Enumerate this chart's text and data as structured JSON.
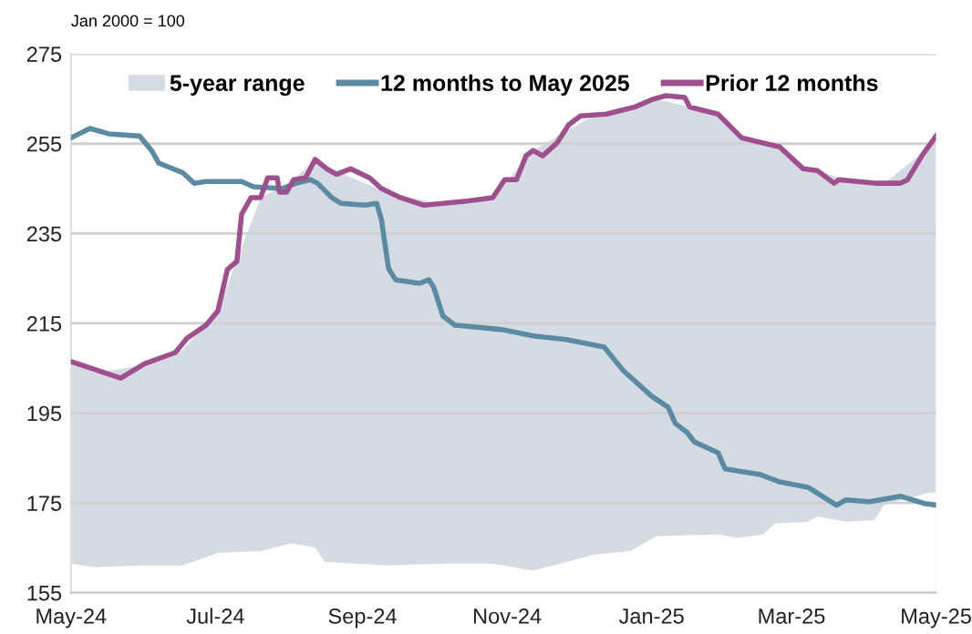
{
  "chart_data": {
    "type": "line",
    "annotations": [
      "Jan 2000 = 100"
    ],
    "xlim": [
      "2024-05-01",
      "2025-05-01"
    ],
    "xticks": [
      {
        "value": "2024-05-01",
        "label": "May-24"
      },
      {
        "value": "2024-07-01",
        "label": "Jul-24"
      },
      {
        "value": "2024-09-01",
        "label": "Sep-24"
      },
      {
        "value": "2024-11-01",
        "label": "Nov-24"
      },
      {
        "value": "2025-01-01",
        "label": "Jan-25"
      },
      {
        "value": "2025-03-01",
        "label": "Mar-25"
      },
      {
        "value": "2025-05-01",
        "label": "May-25"
      }
    ],
    "ylim": [
      155,
      275
    ],
    "yticks": [
      155,
      175,
      195,
      215,
      235,
      255,
      275
    ],
    "grid": "y",
    "legend": "top",
    "marker": "none",
    "line_style": "solid",
    "series": [
      {
        "name": "5-year range",
        "type": "area",
        "color": "#d5dbe3",
        "x": [
          "2024-05-01",
          "2024-05-11",
          "2024-05-30",
          "2024-06-17",
          "2024-07-02",
          "2024-07-20",
          "2024-08-02",
          "2024-08-12",
          "2024-08-16",
          "2024-09-12",
          "2024-10-05",
          "2024-10-26",
          "2024-11-12",
          "2024-12-08",
          "2024-12-23",
          "2025-01-03",
          "2025-01-29",
          "2025-02-06",
          "2025-02-17",
          "2025-02-22",
          "2025-03-08",
          "2025-03-12",
          "2025-03-24",
          "2025-04-05",
          "2025-04-09",
          "2025-04-28",
          "2025-05-01"
        ],
        "values": [
          206.5,
          204,
          205.5,
          209,
          217.8,
          243,
          246.5,
          251.5,
          250,
          244,
          241.5,
          243,
          253.5,
          261.4,
          263,
          265,
          261.6,
          257.5,
          255.5,
          254.6,
          249,
          249,
          247,
          246.2,
          246.2,
          254,
          256.7
        ]
      },
      {
        "type": "area",
        "color": "#ffffff",
        "x": [
          "2024-05-01",
          "2024-05-11",
          "2024-05-30",
          "2024-06-17",
          "2024-07-02",
          "2024-07-20",
          "2024-08-02",
          "2024-08-12",
          "2024-08-16",
          "2024-09-12",
          "2024-10-05",
          "2024-10-26",
          "2024-11-12",
          "2024-12-08",
          "2024-12-23",
          "2025-01-03",
          "2025-01-29",
          "2025-02-06",
          "2025-02-17",
          "2025-02-22",
          "2025-03-08",
          "2025-03-12",
          "2025-03-24",
          "2025-04-05",
          "2025-04-09",
          "2025-04-28",
          "2025-05-01"
        ],
        "values": [
          161.5,
          160.7,
          161.1,
          161.1,
          163.9,
          164.3,
          166,
          165.1,
          161.9,
          161.1,
          161.5,
          161.5,
          159.9,
          163.5,
          164.3,
          167.6,
          168,
          167.2,
          168,
          170.4,
          170.8,
          172,
          170.8,
          171.2,
          174.5,
          177.3,
          177.3
        ]
      },
      {
        "name": "12 months to May 2025",
        "color": "#5b8ba3",
        "x": [
          "2024-05-01",
          "2024-05-09",
          "2024-05-17",
          "2024-05-30",
          "2024-06-04",
          "2024-06-07",
          "2024-06-17",
          "2024-06-22",
          "2024-06-27",
          "2024-07-12",
          "2024-07-17",
          "2024-07-29",
          "2024-08-04",
          "2024-08-10",
          "2024-08-13",
          "2024-08-19",
          "2024-08-23",
          "2024-09-02",
          "2024-09-07",
          "2024-09-09",
          "2024-09-12",
          "2024-09-15",
          "2024-09-25",
          "2024-09-29",
          "2024-10-01",
          "2024-10-05",
          "2024-10-10",
          "2024-10-26",
          "2024-10-31",
          "2024-11-12",
          "2024-11-26",
          "2024-12-12",
          "2024-12-20",
          "2025-01-01",
          "2025-01-08",
          "2025-01-11",
          "2025-01-16",
          "2025-01-19",
          "2025-01-29",
          "2025-02-01",
          "2025-02-16",
          "2025-02-24",
          "2025-03-08",
          "2025-03-20",
          "2025-03-24",
          "2025-04-03",
          "2025-04-16",
          "2025-04-26",
          "2025-05-01"
        ],
        "values": [
          256.3,
          258.4,
          257.2,
          256.7,
          253.5,
          250.7,
          248.6,
          246.2,
          246.6,
          246.6,
          245.4,
          245,
          246.2,
          247,
          246.2,
          243,
          241.7,
          241.3,
          241.7,
          238.1,
          227.2,
          224.7,
          223.9,
          224.7,
          223.1,
          216.6,
          214.6,
          213.8,
          213.5,
          212.2,
          211.4,
          209.7,
          204.5,
          198.8,
          196.3,
          192.7,
          190.7,
          188.6,
          186.2,
          182.6,
          181.3,
          179.7,
          178.5,
          174.5,
          175.7,
          175.3,
          176.5,
          174.9,
          174.5
        ]
      },
      {
        "name": "Prior 12 months",
        "color": "#a04f8e",
        "x": [
          "2024-05-01",
          "2024-05-22",
          "2024-06-01",
          "2024-06-14",
          "2024-06-19",
          "2024-06-27",
          "2024-07-02",
          "2024-07-06",
          "2024-07-10",
          "2024-07-12",
          "2024-07-16",
          "2024-07-20",
          "2024-07-23",
          "2024-07-27",
          "2024-07-28",
          "2024-07-31",
          "2024-08-03",
          "2024-08-08",
          "2024-08-12",
          "2024-08-17",
          "2024-08-21",
          "2024-08-27",
          "2024-09-04",
          "2024-09-09",
          "2024-09-17",
          "2024-09-27",
          "2024-10-13",
          "2024-10-26",
          "2024-10-31",
          "2024-11-05",
          "2024-11-09",
          "2024-11-12",
          "2024-11-16",
          "2024-11-22",
          "2024-11-27",
          "2024-12-02",
          "2024-12-13",
          "2024-12-19",
          "2024-12-25",
          "2025-01-01",
          "2025-01-07",
          "2025-01-15",
          "2025-01-17",
          "2025-01-29",
          "2025-02-08",
          "2025-02-24",
          "2025-03-06",
          "2025-03-12",
          "2025-03-19",
          "2025-03-21",
          "2025-04-06",
          "2025-04-16",
          "2025-04-19",
          "2025-04-25",
          "2025-05-01"
        ],
        "values": [
          206.5,
          202.8,
          206,
          208.5,
          211.7,
          214.6,
          217.8,
          227,
          228.8,
          239.3,
          243,
          243,
          247.4,
          247.4,
          244.2,
          244.2,
          247,
          247.4,
          251.5,
          249.4,
          248.2,
          249.4,
          247.4,
          245,
          243,
          241.3,
          242.1,
          243,
          247,
          247,
          252.3,
          253.5,
          252.3,
          255.1,
          259.2,
          261.2,
          261.6,
          262.4,
          263.2,
          264.8,
          265.7,
          265.3,
          263.2,
          261.6,
          256.3,
          254.3,
          249.4,
          249,
          246.2,
          247,
          246.2,
          246.2,
          247,
          252.3,
          256.7
        ]
      }
    ]
  }
}
